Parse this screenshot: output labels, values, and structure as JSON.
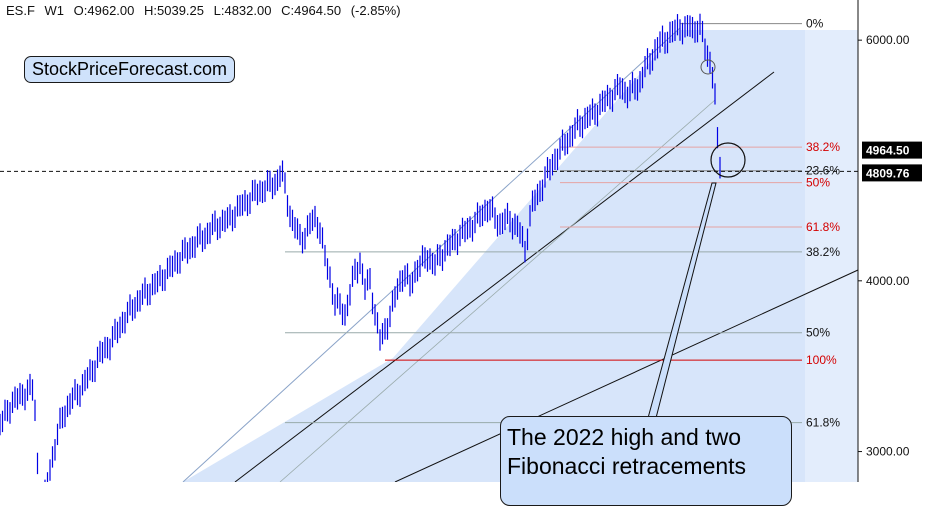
{
  "header": {
    "symbol": "ES.F",
    "interval": "W1",
    "open": "O:4962.00",
    "high": "H:5039.25",
    "low": "L:4832.00",
    "close": "C:4964.50",
    "change": "(-2.85%)"
  },
  "brand": "StockPriceForecast.com",
  "callout": "The 2022 high and two Fibonacci retracements",
  "colors": {
    "price": "#0000e6",
    "fib_red": "#d40000",
    "channel_fill": "#dce8fb",
    "callout_fill": "#cbdffb"
  },
  "chart_data": {
    "type": "line",
    "y_scale": "log",
    "ylim": [
      2850,
      6420
    ],
    "y_ticks": [
      "6000.00",
      "4000.00",
      "3000.00"
    ],
    "price_labels": [
      {
        "label": "4964.50",
        "value": 4964.5
      },
      {
        "label": "4809.76",
        "value": 4809.76
      }
    ],
    "fib_levels_upper": [
      {
        "label": "0%",
        "value": 6170
      },
      {
        "label": "38.2%",
        "value": 5010
      },
      {
        "label": "23.6%",
        "value": 4815
      },
      {
        "label": "50%",
        "value": 4720
      },
      {
        "label": "61.8%",
        "value": 4380
      }
    ],
    "fib_levels_lower": [
      {
        "label": "38.2%",
        "value": 4200
      },
      {
        "label": "50%",
        "value": 3665
      },
      {
        "label": "100%",
        "value": 3500
      },
      {
        "label": "61.8%",
        "value": 3150
      }
    ],
    "series": [
      {
        "values": [
          [
            0,
            3140
          ],
          [
            3,
            3160
          ],
          [
            6,
            3200
          ],
          [
            10,
            3240
          ],
          [
            14,
            3270
          ],
          [
            18,
            3280
          ],
          [
            22,
            3300
          ],
          [
            26,
            3320
          ],
          [
            30,
            3330
          ],
          [
            34,
            3330
          ],
          [
            37,
            2980
          ],
          [
            40,
            2760
          ],
          [
            45,
            2780
          ],
          [
            50,
            2920
          ],
          [
            56,
            3050
          ],
          [
            62,
            3180
          ],
          [
            68,
            3240
          ],
          [
            74,
            3290
          ],
          [
            80,
            3330
          ],
          [
            86,
            3380
          ],
          [
            92,
            3440
          ],
          [
            98,
            3510
          ],
          [
            104,
            3560
          ],
          [
            110,
            3600
          ],
          [
            116,
            3660
          ],
          [
            122,
            3730
          ],
          [
            128,
            3780
          ],
          [
            134,
            3840
          ],
          [
            140,
            3880
          ],
          [
            146,
            3920
          ],
          [
            152,
            3960
          ],
          [
            158,
            3990
          ],
          [
            164,
            4040
          ],
          [
            170,
            4080
          ],
          [
            176,
            4130
          ],
          [
            182,
            4180
          ],
          [
            188,
            4210
          ],
          [
            194,
            4260
          ],
          [
            200,
            4290
          ],
          [
            206,
            4320
          ],
          [
            212,
            4370
          ],
          [
            218,
            4400
          ],
          [
            224,
            4420
          ],
          [
            230,
            4440
          ],
          [
            236,
            4500
          ],
          [
            242,
            4540
          ],
          [
            248,
            4580
          ],
          [
            254,
            4630
          ],
          [
            260,
            4650
          ],
          [
            266,
            4690
          ],
          [
            271,
            4700
          ],
          [
            276,
            4720
          ],
          [
            280,
            4790
          ],
          [
            283,
            4770
          ],
          [
            287,
            4600
          ],
          [
            291,
            4440
          ],
          [
            295,
            4380
          ],
          [
            300,
            4300
          ],
          [
            305,
            4320
          ],
          [
            310,
            4400
          ],
          [
            316,
            4450
          ],
          [
            320,
            4360
          ],
          [
            325,
            4160
          ],
          [
            330,
            4020
          ],
          [
            335,
            3860
          ],
          [
            340,
            3830
          ],
          [
            345,
            3780
          ],
          [
            350,
            3920
          ],
          [
            355,
            4060
          ],
          [
            360,
            4130
          ],
          [
            365,
            3950
          ],
          [
            370,
            4000
          ],
          [
            375,
            3790
          ],
          [
            380,
            3620
          ],
          [
            384,
            3660
          ],
          [
            388,
            3740
          ],
          [
            393,
            3840
          ],
          [
            398,
            3960
          ],
          [
            404,
            4060
          ],
          [
            410,
            3960
          ],
          [
            416,
            4080
          ],
          [
            422,
            4120
          ],
          [
            428,
            4180
          ],
          [
            434,
            4100
          ],
          [
            440,
            4170
          ],
          [
            446,
            4220
          ],
          [
            452,
            4260
          ],
          [
            458,
            4310
          ],
          [
            464,
            4340
          ],
          [
            470,
            4380
          ],
          [
            476,
            4420
          ],
          [
            482,
            4480
          ],
          [
            488,
            4530
          ],
          [
            494,
            4460
          ],
          [
            500,
            4400
          ],
          [
            506,
            4440
          ],
          [
            512,
            4420
          ],
          [
            517,
            4380
          ],
          [
            521,
            4320
          ],
          [
            525,
            4210
          ],
          [
            529,
            4420
          ],
          [
            533,
            4560
          ],
          [
            538,
            4620
          ],
          [
            543,
            4720
          ],
          [
            548,
            4800
          ],
          [
            554,
            4900
          ],
          [
            560,
            4980
          ],
          [
            566,
            5060
          ],
          [
            572,
            5120
          ],
          [
            578,
            5200
          ],
          [
            584,
            5240
          ],
          [
            590,
            5280
          ],
          [
            596,
            5330
          ],
          [
            602,
            5380
          ],
          [
            608,
            5450
          ],
          [
            614,
            5480
          ],
          [
            620,
            5550
          ],
          [
            626,
            5500
          ],
          [
            630,
            5480
          ],
          [
            634,
            5560
          ],
          [
            638,
            5540
          ],
          [
            642,
            5650
          ],
          [
            647,
            5750
          ],
          [
            652,
            5840
          ],
          [
            657,
            5920
          ],
          [
            662,
            5990
          ],
          [
            667,
            6030
          ],
          [
            672,
            6060
          ],
          [
            676,
            6110
          ],
          [
            679,
            6150
          ],
          [
            682,
            6130
          ],
          [
            686,
            6080
          ],
          [
            690,
            6160
          ],
          [
            694,
            6100
          ],
          [
            698,
            6140
          ],
          [
            701,
            6100
          ],
          [
            704,
            5980
          ],
          [
            707,
            5870
          ],
          [
            711,
            5760
          ],
          [
            714,
            5560
          ],
          [
            716,
            5320
          ],
          [
            718,
            4960
          ],
          [
            720,
            4880
          ],
          [
            722,
            4940
          ]
        ]
      }
    ]
  }
}
